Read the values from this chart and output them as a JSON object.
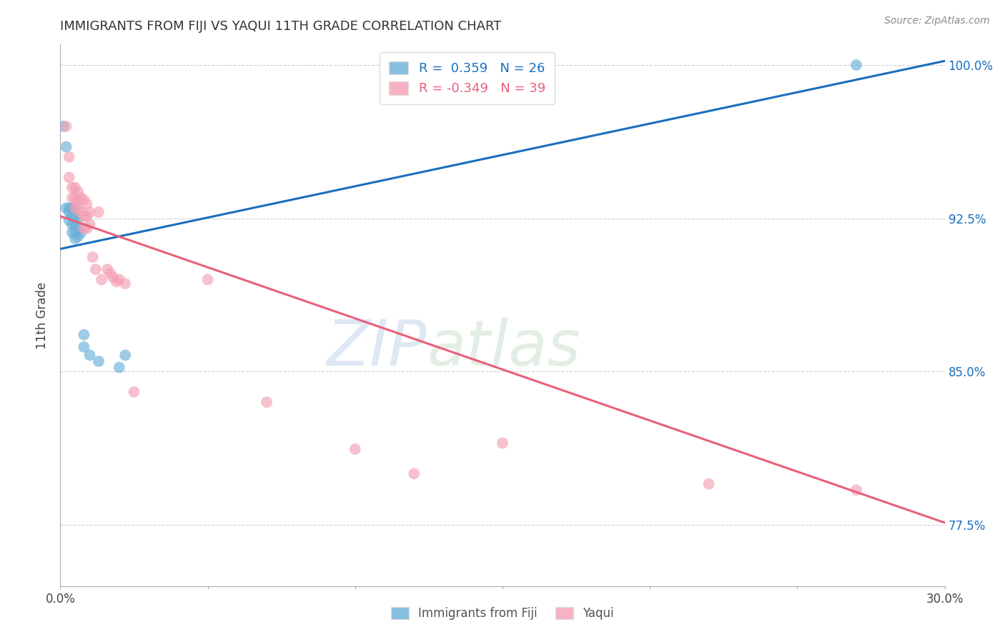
{
  "title": "IMMIGRANTS FROM FIJI VS YAQUI 11TH GRADE CORRELATION CHART",
  "source": "Source: ZipAtlas.com",
  "ylabel": "11th Grade",
  "xlim": [
    0.0,
    0.3
  ],
  "ylim": [
    0.745,
    1.01
  ],
  "xticks": [
    0.0,
    0.05,
    0.1,
    0.15,
    0.2,
    0.25,
    0.3
  ],
  "xticklabels": [
    "0.0%",
    "",
    "",
    "",
    "",
    "",
    "30.0%"
  ],
  "yticks": [
    0.775,
    0.85,
    0.925,
    1.0
  ],
  "yticklabels": [
    "77.5%",
    "85.0%",
    "92.5%",
    "100.0%"
  ],
  "fiji_color": "#6ab0d8",
  "yaqui_color": "#f4a0b5",
  "fiji_line_color": "#1a6fbe",
  "yaqui_line_color": "#e8607a",
  "legend_fiji_r": "R =  0.359",
  "legend_fiji_n": "N = 26",
  "legend_yaqui_r": "R = -0.349",
  "legend_yaqui_n": "N = 39",
  "watermark_zip": "ZIP",
  "watermark_atlas": "atlas",
  "fiji_line_x0": 0.0,
  "fiji_line_y0": 0.91,
  "fiji_line_x1": 0.3,
  "fiji_line_y1": 1.002,
  "yaqui_line_x0": 0.0,
  "yaqui_line_y0": 0.926,
  "yaqui_line_x1": 0.3,
  "yaqui_line_y1": 0.776,
  "fiji_x": [
    0.001,
    0.002,
    0.002,
    0.003,
    0.003,
    0.003,
    0.004,
    0.004,
    0.004,
    0.004,
    0.005,
    0.005,
    0.005,
    0.005,
    0.005,
    0.006,
    0.006,
    0.006,
    0.007,
    0.008,
    0.008,
    0.01,
    0.013,
    0.02,
    0.022,
    0.27
  ],
  "fiji_y": [
    0.97,
    0.96,
    0.93,
    0.93,
    0.928,
    0.924,
    0.93,
    0.926,
    0.922,
    0.918,
    0.93,
    0.926,
    0.922,
    0.918,
    0.915,
    0.924,
    0.92,
    0.916,
    0.918,
    0.868,
    0.862,
    0.858,
    0.855,
    0.852,
    0.858,
    1.0
  ],
  "yaqui_x": [
    0.002,
    0.003,
    0.003,
    0.004,
    0.004,
    0.005,
    0.005,
    0.005,
    0.006,
    0.006,
    0.006,
    0.007,
    0.007,
    0.008,
    0.008,
    0.008,
    0.009,
    0.009,
    0.009,
    0.01,
    0.01,
    0.011,
    0.012,
    0.013,
    0.014,
    0.016,
    0.017,
    0.018,
    0.019,
    0.02,
    0.022,
    0.025,
    0.05,
    0.07,
    0.1,
    0.12,
    0.15,
    0.22,
    0.27
  ],
  "yaqui_y": [
    0.97,
    0.955,
    0.945,
    0.94,
    0.935,
    0.94,
    0.935,
    0.93,
    0.938,
    0.934,
    0.93,
    0.935,
    0.928,
    0.934,
    0.926,
    0.92,
    0.932,
    0.926,
    0.92,
    0.928,
    0.922,
    0.906,
    0.9,
    0.928,
    0.895,
    0.9,
    0.898,
    0.896,
    0.894,
    0.895,
    0.893,
    0.84,
    0.895,
    0.835,
    0.812,
    0.8,
    0.815,
    0.795,
    0.792
  ]
}
